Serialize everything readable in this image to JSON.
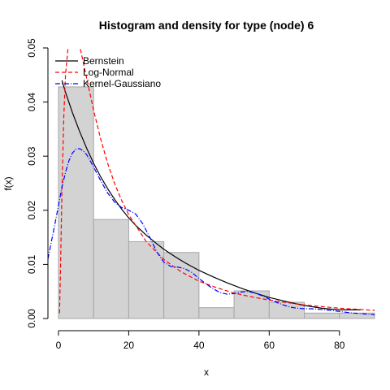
{
  "chart_data": {
    "type": "histogram-density",
    "title": "Histogram and density for type (node) 6",
    "xlabel": "x",
    "ylabel": "f(x)",
    "xlim": [
      -3,
      90
    ],
    "ylim": [
      0,
      0.05
    ],
    "x_ticks": [
      0,
      20,
      40,
      60,
      80
    ],
    "y_ticks": [
      0.0,
      0.01,
      0.02,
      0.03,
      0.04,
      0.05
    ],
    "y_tick_labels": [
      "0.00",
      "0.01",
      "0.02",
      "0.03",
      "0.04",
      "0.05"
    ],
    "bins": [
      {
        "x0": 0,
        "x1": 10,
        "density": 0.0428
      },
      {
        "x0": 10,
        "x1": 20,
        "density": 0.0183
      },
      {
        "x0": 20,
        "x1": 30,
        "density": 0.0142
      },
      {
        "x0": 30,
        "x1": 40,
        "density": 0.0122
      },
      {
        "x0": 40,
        "x1": 50,
        "density": 0.002
      },
      {
        "x0": 50,
        "x1": 60,
        "density": 0.0051
      },
      {
        "x0": 60,
        "x1": 70,
        "density": 0.003
      },
      {
        "x0": 70,
        "x1": 80,
        "density": 0.001
      },
      {
        "x0": 80,
        "x1": 90,
        "density": 0.001
      }
    ],
    "bar_fill": "#d3d3d3",
    "bar_stroke": "#a6a6a6",
    "series": [
      {
        "name": "Bernstein",
        "color": "#000000",
        "dash": "solid",
        "x": [
          1,
          2,
          4,
          6,
          8,
          10,
          12,
          14,
          16,
          18,
          20,
          22,
          25,
          28,
          30,
          33,
          36,
          40,
          44,
          48,
          52,
          56,
          60,
          65,
          70,
          75,
          80,
          86
        ],
        "y": [
          0.044,
          0.0418,
          0.038,
          0.0346,
          0.0315,
          0.0287,
          0.0262,
          0.024,
          0.022,
          0.0202,
          0.0186,
          0.0172,
          0.0154,
          0.0138,
          0.0128,
          0.0115,
          0.0103,
          0.0089,
          0.0077,
          0.0066,
          0.0056,
          0.0047,
          0.0039,
          0.0031,
          0.0024,
          0.0019,
          0.0016,
          0.0016
        ]
      },
      {
        "name": "Log-Normal",
        "color": "#ff0000",
        "dash": "dashed",
        "x": [
          0.3,
          0.6,
          1,
          1.5,
          2,
          3,
          4,
          5,
          6,
          7,
          8,
          10,
          12,
          14,
          16,
          18,
          20,
          25,
          30,
          35,
          40,
          45,
          50,
          55,
          60,
          70,
          80,
          90
        ],
        "y": [
          0.001,
          0.01,
          0.024,
          0.037,
          0.045,
          0.052,
          0.054,
          0.053,
          0.0505,
          0.0475,
          0.0445,
          0.0385,
          0.0332,
          0.0287,
          0.0249,
          0.0218,
          0.0192,
          0.0142,
          0.0109,
          0.0086,
          0.0069,
          0.0057,
          0.0047,
          0.004,
          0.0034,
          0.0025,
          0.0019,
          0.0015
        ]
      },
      {
        "name": "Kernel-Gaussiano",
        "color": "#0000ff",
        "dash": "dashdot",
        "x": [
          -3,
          -1,
          1,
          2,
          3,
          4,
          5,
          6,
          7,
          8,
          9,
          10,
          12,
          14,
          16,
          18,
          20,
          22,
          24,
          26,
          28,
          30,
          32,
          34,
          36,
          38,
          40,
          42,
          44,
          46,
          48,
          50,
          52,
          54,
          56,
          58,
          60,
          62,
          64,
          66,
          68,
          70,
          72,
          74,
          76,
          80,
          84,
          88,
          90
        ],
        "y": [
          0.011,
          0.0175,
          0.0243,
          0.027,
          0.0292,
          0.0306,
          0.0313,
          0.0314,
          0.031,
          0.0303,
          0.0292,
          0.028,
          0.0255,
          0.0232,
          0.0215,
          0.0205,
          0.02,
          0.0193,
          0.0175,
          0.015,
          0.0123,
          0.0104,
          0.0096,
          0.0095,
          0.0092,
          0.0085,
          0.0074,
          0.0064,
          0.0055,
          0.0048,
          0.0045,
          0.0046,
          0.0049,
          0.005,
          0.0047,
          0.0042,
          0.0036,
          0.003,
          0.0025,
          0.0021,
          0.0019,
          0.0018,
          0.0018,
          0.0017,
          0.0016,
          0.0013,
          0.001,
          0.0008,
          0.0007
        ]
      }
    ],
    "legend": {
      "position": "top-left",
      "entries": [
        {
          "name": "Bernstein",
          "color": "#000000",
          "dash": "solid"
        },
        {
          "name": "Log-Normal",
          "color": "#ff0000",
          "dash": "dashed"
        },
        {
          "name": "Kernel-Gaussiano",
          "color": "#0000ff",
          "dash": "dashdot"
        }
      ]
    }
  }
}
